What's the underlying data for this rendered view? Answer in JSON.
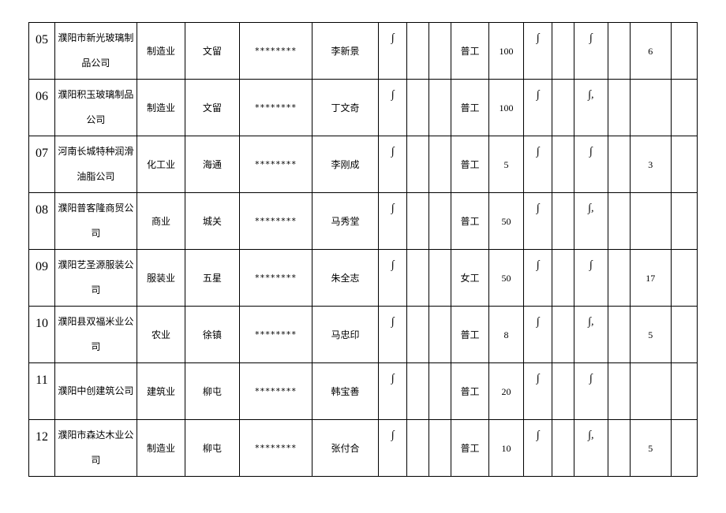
{
  "rows": [
    {
      "idx": "05",
      "company": "濮阳市新光玻璃制品公司",
      "industry": "制造业",
      "town": "文留",
      "mask": "********",
      "contact": "李新景",
      "m1": "∫",
      "m2": "",
      "m3": "",
      "job": "普工",
      "count": "100",
      "m4": "∫",
      "m5": "",
      "m6": "∫",
      "m7": "",
      "extra": "6",
      "m8": ""
    },
    {
      "idx": "06",
      "company": "濮阳积玉玻璃制品公司",
      "industry": "制造业",
      "town": "文留",
      "mask": "********",
      "contact": "丁文奇",
      "m1": "∫",
      "m2": "",
      "m3": "",
      "job": "普工",
      "count": "100",
      "m4": "∫",
      "m5": "",
      "m6": "∫,",
      "m7": "",
      "extra": "",
      "m8": ""
    },
    {
      "idx": "07",
      "company": "河南长城特种润滑油脂公司",
      "industry": "化工业",
      "town": "海通",
      "mask": "********",
      "contact": "李刚成",
      "m1": "∫",
      "m2": "",
      "m3": "",
      "job": "普工",
      "count": "5",
      "m4": "∫",
      "m5": "",
      "m6": "∫",
      "m7": "",
      "extra": "3",
      "m8": ""
    },
    {
      "idx": "08",
      "company": "濮阳普客隆商贸公司",
      "industry": "商业",
      "town": "城关",
      "mask": "********",
      "contact": "马秀堂",
      "m1": "∫",
      "m2": "",
      "m3": "",
      "job": "普工",
      "count": "50",
      "m4": "∫",
      "m5": "",
      "m6": "∫,",
      "m7": "",
      "extra": "",
      "m8": ""
    },
    {
      "idx": "09",
      "company": "濮阳艺圣源服装公司",
      "industry": "服装业",
      "town": "五星",
      "mask": "********",
      "contact": "朱全志",
      "m1": "∫",
      "m2": "",
      "m3": "",
      "job": "女工",
      "count": "50",
      "m4": "∫",
      "m5": "",
      "m6": "∫",
      "m7": "",
      "extra": "17",
      "m8": ""
    },
    {
      "idx": "10",
      "company": "濮阳县双福米业公司",
      "industry": "农业",
      "town": "徐镇",
      "mask": "********",
      "contact": "马忠印",
      "m1": "∫",
      "m2": "",
      "m3": "",
      "job": "普工",
      "count": "8",
      "m4": "∫",
      "m5": "",
      "m6": "∫,",
      "m7": "",
      "extra": "5",
      "m8": ""
    },
    {
      "idx": "11",
      "company": "濮阳中创建筑公司",
      "industry": "建筑业",
      "town": "柳屯",
      "mask": "********",
      "contact": "韩宝善",
      "m1": "∫",
      "m2": "",
      "m3": "",
      "job": "普工",
      "count": "20",
      "m4": "∫",
      "m5": "",
      "m6": "∫",
      "m7": "",
      "extra": "",
      "m8": ""
    },
    {
      "idx": "12",
      "company": "濮阳市森达木业公司",
      "industry": "制造业",
      "town": "柳屯",
      "mask": "********",
      "contact": "张付合",
      "m1": "∫",
      "m2": "",
      "m3": "",
      "job": "普工",
      "count": "10",
      "m4": "∫",
      "m5": "",
      "m6": "∫,",
      "m7": "",
      "extra": "5",
      "m8": ""
    }
  ]
}
